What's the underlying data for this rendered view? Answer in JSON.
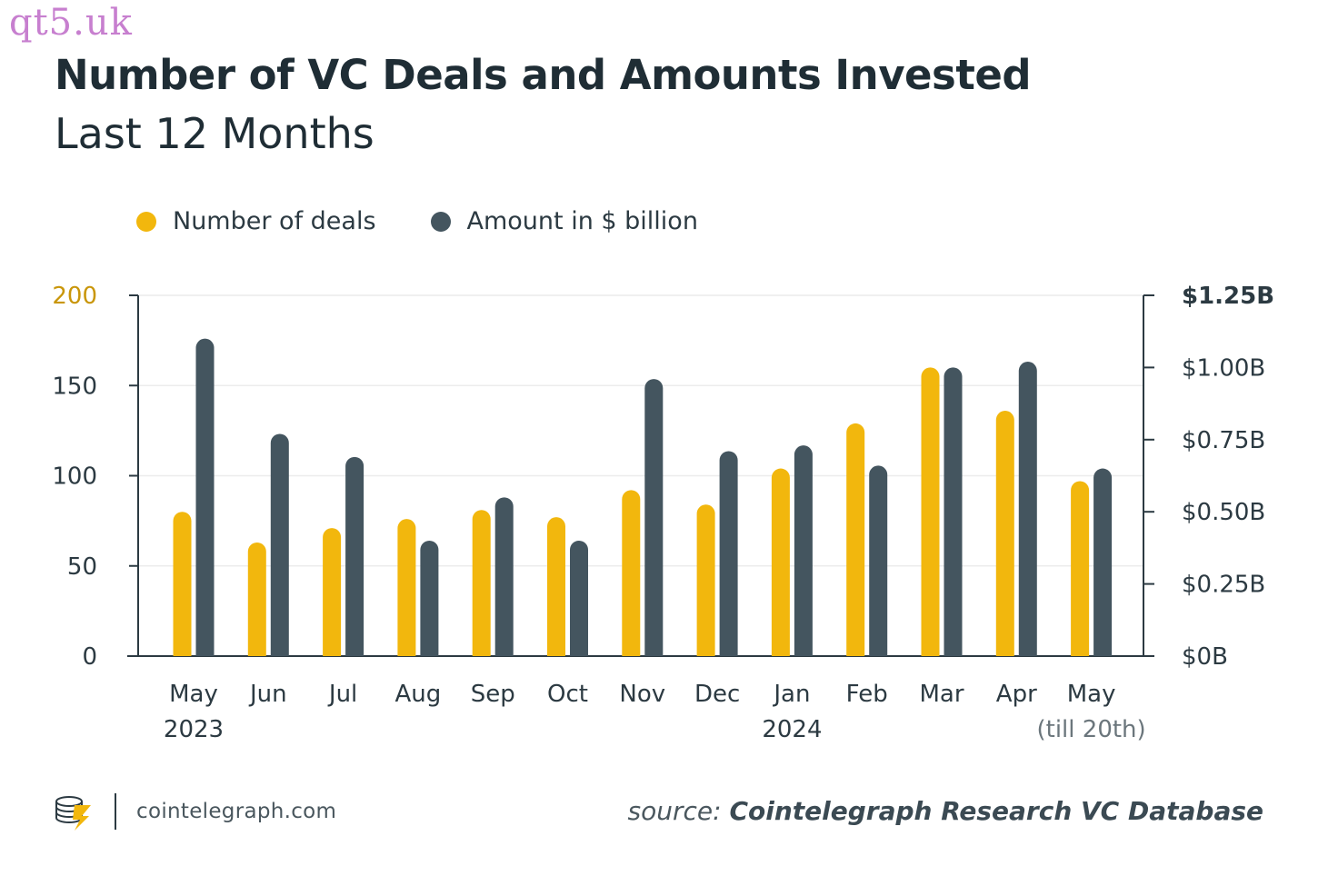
{
  "watermark": "qt5.uk",
  "header": {
    "title": "Number of VC Deals and Amounts Invested",
    "subtitle": "Last 12 Months"
  },
  "legend": [
    {
      "label": "Number of deals",
      "color": "#f2b70d"
    },
    {
      "label": "Amount in $ billion",
      "color": "#44555f"
    }
  ],
  "footer": {
    "site": "cointelegraph.com",
    "source_prefix": "source:",
    "source_name": "Cointelegraph Research VC Database"
  },
  "chart_data": {
    "type": "bar",
    "categories": [
      "May",
      "Jun",
      "Jul",
      "Aug",
      "Sep",
      "Oct",
      "Nov",
      "Dec",
      "Jan",
      "Feb",
      "Mar",
      "Apr",
      "May"
    ],
    "category_sublabels": [
      "2023",
      "",
      "",
      "",
      "",
      "",
      "",
      "",
      "2024",
      "",
      "",
      "",
      "(till 20th)"
    ],
    "series": [
      {
        "name": "Number of deals",
        "axis": "left",
        "color": "#f2b70d",
        "values": [
          80,
          63,
          71,
          76,
          81,
          77,
          92,
          84,
          104,
          129,
          160,
          136,
          97
        ]
      },
      {
        "name": "Amount in $ billion",
        "axis": "right",
        "color": "#44555f",
        "values": [
          1.1,
          0.77,
          0.69,
          0.4,
          0.55,
          0.4,
          0.96,
          0.71,
          0.73,
          0.66,
          1.0,
          1.02,
          0.65
        ]
      }
    ],
    "y_left": {
      "ylim": [
        0,
        200
      ],
      "ticks": [
        "0",
        "50",
        "100",
        "150",
        "200"
      ],
      "values": [
        0,
        50,
        100,
        150,
        200
      ]
    },
    "y_right": {
      "ylim": [
        0,
        1.25
      ],
      "ticks": [
        "$0B",
        "$0.25B",
        "$0.50B",
        "$0.75B",
        "$1.00B",
        "$1.25B"
      ],
      "values": [
        0,
        0.25,
        0.5,
        0.75,
        1.0,
        1.25
      ]
    },
    "grid": true,
    "legend_position": "top-left"
  }
}
